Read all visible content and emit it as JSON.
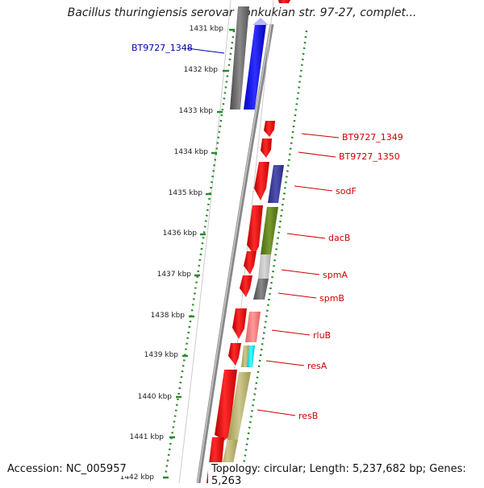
{
  "title": "Bacillus thuringiensis serovar konkukian str. 97-27, complet...",
  "accession": "Accession: NC_005957",
  "topology": "Topology: circular; Length: 5,237,682 bp; Genes: 5,263",
  "scale": {
    "unit": "kbp",
    "ticks": [
      "1431 kbp",
      "1432 kbp",
      "1433 kbp",
      "1434 kbp",
      "1435 kbp",
      "1436 kbp",
      "1437 kbp",
      "1438 kbp",
      "1439 kbp",
      "1440 kbp",
      "1441 kbp",
      "1442 kbp"
    ]
  },
  "colors": {
    "gene_red": "#ff0000",
    "blue_label": "#0000aa",
    "red_label": "#cc0000",
    "scale_green": "#2a8a2a",
    "backbone": "#888888"
  },
  "genes": [
    {
      "name": "BT9727_1348",
      "color": "#0000aa"
    },
    {
      "name": "BT9727_1349",
      "color": "#cc0000"
    },
    {
      "name": "BT9727_1350",
      "color": "#cc0000"
    },
    {
      "name": "sodF",
      "color": "#cc0000"
    },
    {
      "name": "dacB",
      "color": "#cc0000"
    },
    {
      "name": "spmA",
      "color": "#cc0000"
    },
    {
      "name": "spmB",
      "color": "#cc0000"
    },
    {
      "name": "rluB",
      "color": "#cc0000"
    },
    {
      "name": "resA",
      "color": "#cc0000"
    },
    {
      "name": "resB",
      "color": "#cc0000"
    }
  ]
}
